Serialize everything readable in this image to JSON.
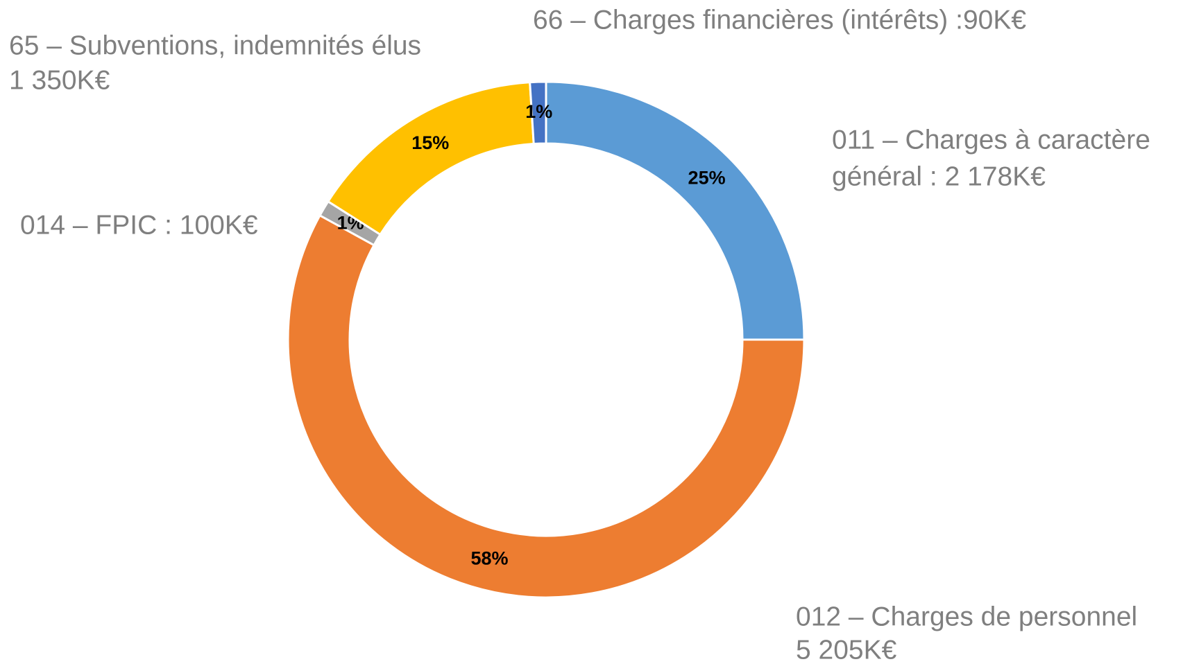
{
  "chart_data": {
    "type": "donut",
    "categories": [
      [
        "011 – Charges à caractère",
        "général : 2 178K€"
      ],
      [
        "012 – Charges de personnel",
        "5 205K€"
      ],
      [
        "014 – FPIC : 100K€"
      ],
      [
        "65 – Subventions, indemnités élus",
        "1 350K€"
      ],
      [
        "66 – Charges financières (intérêts) :90K€"
      ]
    ],
    "values": [
      25,
      58,
      1,
      15,
      1
    ],
    "value_labels": [
      "25%",
      "58%",
      "1%",
      "15%",
      "1%"
    ],
    "colors": [
      "#5b9bd5",
      "#ed7d31",
      "#a5a5a5",
      "#ffc000",
      "#4472c4"
    ]
  }
}
